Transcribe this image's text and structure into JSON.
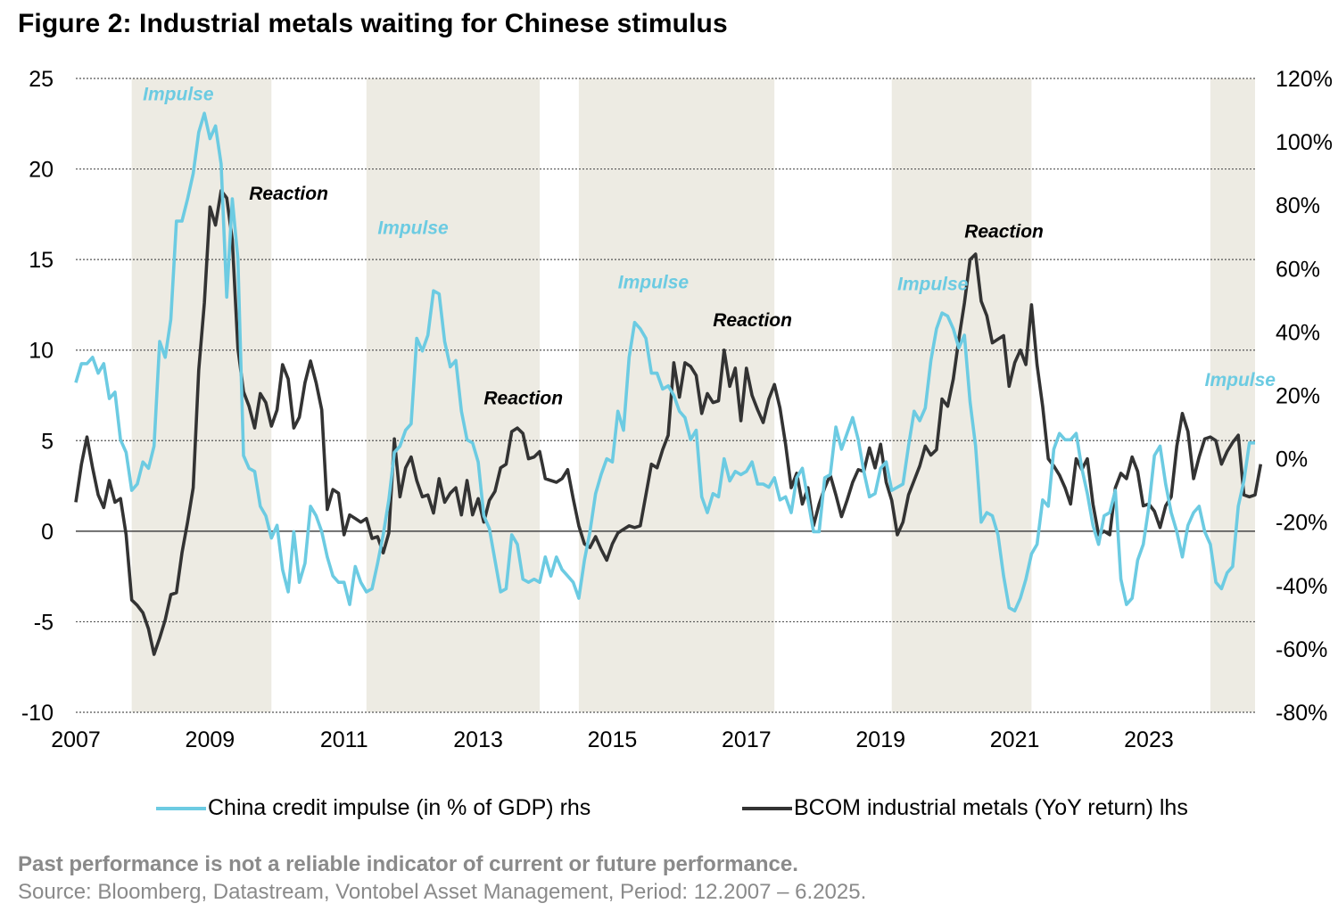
{
  "title": "Figure 2: Industrial metals waiting for Chinese stimulus",
  "chart_data": {
    "type": "line",
    "title": "Figure 2: Industrial metals waiting for Chinese stimulus",
    "x_axis": {
      "type": "date",
      "xlim": [
        "2007-01",
        "2024-08"
      ],
      "tick_labels": [
        "2007",
        "2009",
        "2011",
        "2013",
        "2015",
        "2017",
        "2019",
        "2021",
        "2023"
      ]
    },
    "y_left": {
      "ylim": [
        -10,
        25
      ],
      "tick_labels": [
        "25",
        "20",
        "15",
        "10",
        "5",
        "0",
        "-5",
        "-10"
      ]
    },
    "y_right": {
      "ylim": [
        -80,
        120
      ],
      "unit": "%",
      "tick_labels": [
        "120%",
        "100%",
        "80%",
        "60%",
        "40%",
        "20%",
        "0%",
        "-20%",
        "-40%",
        "-60%",
        "-80%"
      ]
    },
    "grid": "horizontal dotted",
    "legend_placement": "bottom",
    "shaded_periods": [
      [
        "2007-11",
        "2009-12"
      ],
      [
        "2011-05",
        "2013-12"
      ],
      [
        "2014-07",
        "2017-06"
      ],
      [
        "2019-03",
        "2021-04"
      ],
      [
        "2023-12",
        "2024-08"
      ]
    ],
    "annotations": [
      {
        "text": "Impulse",
        "date": "2008-01",
        "value_lhs": 24.2,
        "color": "#6ccbe2"
      },
      {
        "text": "Reaction",
        "date": "2009-08",
        "value_lhs": 18.7,
        "color": "#000000"
      },
      {
        "text": "Impulse",
        "date": "2011-07",
        "value_lhs": 16.8,
        "color": "#6ccbe2"
      },
      {
        "text": "Reaction",
        "date": "2013-02",
        "value_lhs": 7.4,
        "color": "#000000"
      },
      {
        "text": "Impulse",
        "date": "2015-02",
        "value_lhs": 13.8,
        "color": "#6ccbe2"
      },
      {
        "text": "Reaction",
        "date": "2016-07",
        "value_lhs": 11.7,
        "color": "#000000"
      },
      {
        "text": "Impulse",
        "date": "2019-04",
        "value_lhs": 13.7,
        "color": "#6ccbe2"
      },
      {
        "text": "Reaction",
        "date": "2020-04",
        "value_lhs": 16.6,
        "color": "#000000"
      },
      {
        "text": "Impulse",
        "date": "2023-11",
        "value_lhs": 8.4,
        "color": "#6ccbe2"
      }
    ],
    "series": [
      {
        "name": "China credit impulse (in % of GDP) rhs",
        "axis": "right",
        "color": "#6ccbe2",
        "start": "2007-01",
        "frequency": "monthly",
        "values": [
          24,
          30,
          30,
          32,
          27,
          30,
          19,
          21,
          6,
          2,
          -10,
          -8,
          -1,
          -3,
          4,
          37,
          32,
          44,
          75,
          75,
          82,
          90,
          103,
          109,
          101,
          105,
          93,
          51,
          82,
          63,
          1,
          -3,
          -4,
          -15,
          -18,
          -25,
          -21,
          -35,
          -42,
          -23,
          -39,
          -33,
          -15,
          -18,
          -23,
          -31,
          -37,
          -39,
          -39,
          -46,
          -34,
          -39,
          -42,
          -41,
          -33,
          -24,
          -13,
          2,
          4,
          9,
          11,
          38,
          34,
          39,
          53,
          52,
          37,
          29,
          31,
          15,
          6,
          5,
          -1,
          -18,
          -22,
          -32,
          -42,
          -41,
          -24,
          -27,
          -38,
          -39,
          -38,
          -39,
          -31,
          -37,
          -31,
          -35,
          -37,
          -39,
          -44,
          -32,
          -23,
          -11,
          -5,
          0,
          -1,
          15,
          9,
          32,
          43,
          41,
          38,
          27,
          27,
          22,
          23,
          20,
          15,
          13,
          6,
          9,
          -12,
          -17,
          -11,
          -12,
          0,
          -7,
          -4,
          -5,
          -4,
          -1,
          -8,
          -8,
          -9,
          -6,
          -13,
          -12,
          -17,
          -6,
          -3,
          -13,
          -23,
          -23,
          -6,
          -5,
          10,
          3,
          8,
          13,
          6,
          -4,
          -12,
          -11,
          -3,
          -1,
          -10,
          -9,
          -8,
          4,
          15,
          12,
          16,
          31,
          41,
          46,
          45,
          41,
          35,
          39,
          18,
          4,
          -20,
          -17,
          -18,
          -24,
          -37,
          -47,
          -48,
          -44,
          -38,
          -30,
          -27,
          -13,
          -15,
          3,
          8,
          6,
          6,
          8,
          -3,
          -11,
          -21,
          -27,
          -18,
          -17,
          -10,
          -38,
          -46,
          -44,
          -32,
          -27,
          -15,
          1,
          4,
          -8,
          -17,
          -23,
          -31,
          -21,
          -17,
          -15,
          -23,
          -27,
          -39,
          -41,
          -36,
          -34,
          -15,
          -7,
          5,
          5
        ]
      },
      {
        "name": "BCOM industrial metals (YoY return) lhs",
        "axis": "left",
        "color": "#333333",
        "start": "2007-01",
        "frequency": "monthly",
        "values": [
          1.6,
          3.7,
          5.2,
          3.5,
          2.0,
          1.3,
          2.8,
          1.6,
          1.8,
          -0.2,
          -3.8,
          -4.1,
          -4.5,
          -5.4,
          -6.8,
          -5.9,
          -4.9,
          -3.5,
          -3.4,
          -1.2,
          0.5,
          2.4,
          8.9,
          12.6,
          17.9,
          16.9,
          18.8,
          18.4,
          16.1,
          10.1,
          7.7,
          6.9,
          5.7,
          7.6,
          7.1,
          5.8,
          6.7,
          9.2,
          8.4,
          5.7,
          6.3,
          8.2,
          9.4,
          8.2,
          6.7,
          1.2,
          2.3,
          2.1,
          -0.2,
          0.9,
          0.7,
          0.5,
          0.7,
          -0.4,
          -0.3,
          -1.2,
          -0.1,
          5.1,
          1.9,
          3.5,
          4.1,
          2.8,
          1.9,
          2.0,
          1.0,
          2.9,
          1.6,
          2.1,
          2.4,
          0.9,
          2.8,
          0.9,
          1.8,
          0.5,
          1.7,
          2.2,
          3.5,
          3.7,
          5.5,
          5.7,
          5.4,
          4.0,
          4.1,
          4.4,
          2.9,
          2.8,
          2.7,
          2.9,
          3.4,
          1.8,
          0.3,
          -0.7,
          -0.9,
          -0.3,
          -1.0,
          -1.6,
          -0.7,
          -0.1,
          0.1,
          0.3,
          0.2,
          0.3,
          2.0,
          3.7,
          3.5,
          4.5,
          5.3,
          9.3,
          7.4,
          9.3,
          9.1,
          8.6,
          6.5,
          7.6,
          7.1,
          7.2,
          10.0,
          8.0,
          9.0,
          6.1,
          9.0,
          7.5,
          6.7,
          6.0,
          7.3,
          8.1,
          6.8,
          4.8,
          2.4,
          3.2,
          1.5,
          2.4,
          0.3,
          1.5,
          2.4,
          3.1,
          2.0,
          0.8,
          1.7,
          2.7,
          3.4,
          3.3,
          4.6,
          3.5,
          4.8,
          2.7,
          1.7,
          -0.2,
          0.5,
          2.0,
          2.8,
          3.6,
          4.7,
          4.2,
          4.5,
          7.3,
          6.9,
          8.4,
          10.6,
          12.6,
          15.0,
          15.3,
          12.7,
          11.9,
          10.4,
          10.6,
          10.8,
          8.0,
          9.3,
          10.0,
          9.2,
          12.5,
          9.2,
          6.9,
          4.0,
          3.6,
          3.1,
          2.4,
          1.5,
          4.0,
          3.4,
          4.0,
          1.5,
          -0.2,
          0.0,
          -0.2,
          2.4,
          3.2,
          2.9,
          4.1,
          3.3,
          1.4,
          1.5,
          1.1,
          0.2,
          1.4,
          1.9,
          4.7,
          6.5,
          5.5,
          2.9,
          4.1,
          5.1,
          5.2,
          5.0,
          3.7,
          4.4,
          4.9,
          5.3,
          2.0,
          1.9,
          2.0,
          3.7
        ]
      }
    ]
  },
  "legend": {
    "items": [
      {
        "label": "China credit impulse (in % of GDP) rhs",
        "color": "#6ccbe2"
      },
      {
        "label": "BCOM industrial metals (YoY return) lhs",
        "color": "#333333"
      }
    ]
  },
  "footer": {
    "disclaimer": "Past performance is not a reliable indicator of current or future performance.",
    "source": "Source: Bloomberg, Datastream, Vontobel Asset Management, Period: 12.2007 – 6.2025."
  },
  "colors": {
    "shading": "#edebe3",
    "grid": "#555555",
    "zero_line": "#444444"
  }
}
